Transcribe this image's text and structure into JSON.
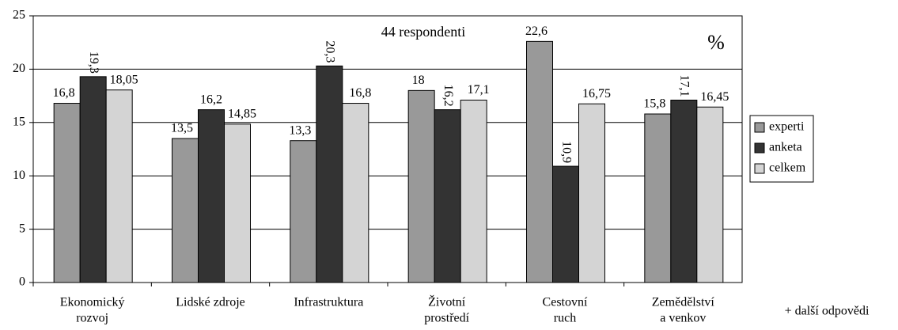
{
  "chart_data": {
    "type": "bar",
    "annotations": [
      "44 respondenti",
      "%",
      "+ další odpovědi"
    ],
    "categories": [
      [
        "Ekonomický",
        "rozvoj"
      ],
      [
        "Lidské zdroje"
      ],
      [
        "Infrastruktura"
      ],
      [
        "Životní",
        "prostředí"
      ],
      [
        "Cestovní",
        "ruch"
      ],
      [
        "Zemědělství",
        "a venkov"
      ]
    ],
    "series": [
      {
        "name": "experti",
        "color": "#999999",
        "values": [
          16.8,
          13.5,
          13.3,
          18,
          22.6,
          15.8
        ],
        "value_labels": [
          "16,8",
          "13,5",
          "13,3",
          "18",
          "22,6",
          "15,8"
        ]
      },
      {
        "name": "anketa",
        "color": "#333333",
        "values": [
          19.3,
          16.2,
          20.3,
          16.2,
          10.9,
          17.1
        ],
        "value_labels": [
          "19,3",
          "16,2",
          "20,3",
          "16,2",
          "10,9",
          "17,1"
        ]
      },
      {
        "name": "celkem",
        "color": "#d4d4d4",
        "values": [
          18.05,
          14.85,
          16.8,
          17.1,
          16.75,
          16.45
        ],
        "value_labels": [
          "18,05",
          "14,85",
          "16,8",
          "17,1",
          "16,75",
          "16,45"
        ]
      }
    ],
    "ylim": [
      0,
      25
    ],
    "yticks": [
      0,
      5,
      10,
      15,
      20,
      25
    ],
    "grid": true,
    "legend": "right"
  }
}
